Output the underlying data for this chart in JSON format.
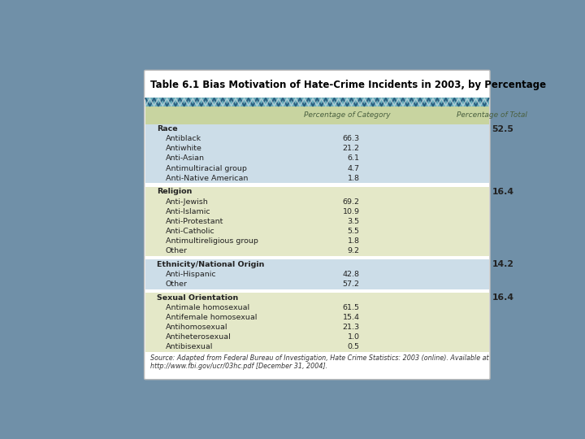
{
  "title": "Table 6.1 Bias Motivation of Hate-Crime Incidents in 2003, by Percentage",
  "col_headers": [
    "",
    "Percentage of Category",
    "Percentage of Total"
  ],
  "rows": [
    {
      "label": "Race",
      "bold": true,
      "pct_category": "",
      "pct_total": "52.5",
      "group": "race"
    },
    {
      "label": "Antiblack",
      "bold": false,
      "pct_category": "66.3",
      "pct_total": "",
      "group": "race"
    },
    {
      "label": "Antiwhite",
      "bold": false,
      "pct_category": "21.2",
      "pct_total": "",
      "group": "race"
    },
    {
      "label": "Anti-Asian",
      "bold": false,
      "pct_category": "6.1",
      "pct_total": "",
      "group": "race"
    },
    {
      "label": "Antimultiracial group",
      "bold": false,
      "pct_category": "4.7",
      "pct_total": "",
      "group": "race"
    },
    {
      "label": "Anti-Native American",
      "bold": false,
      "pct_category": "1.8",
      "pct_total": "",
      "group": "race"
    },
    {
      "label": "",
      "bold": false,
      "pct_category": "",
      "pct_total": "",
      "group": "spacer1"
    },
    {
      "label": "Religion",
      "bold": true,
      "pct_category": "",
      "pct_total": "16.4",
      "group": "religion"
    },
    {
      "label": "Anti-Jewish",
      "bold": false,
      "pct_category": "69.2",
      "pct_total": "",
      "group": "religion"
    },
    {
      "label": "Anti-Islamic",
      "bold": false,
      "pct_category": "10.9",
      "pct_total": "",
      "group": "religion"
    },
    {
      "label": "Anti-Protestant",
      "bold": false,
      "pct_category": "3.5",
      "pct_total": "",
      "group": "religion"
    },
    {
      "label": "Anti-Catholic",
      "bold": false,
      "pct_category": "5.5",
      "pct_total": "",
      "group": "religion"
    },
    {
      "label": "Antimultireligious group",
      "bold": false,
      "pct_category": "1.8",
      "pct_total": "",
      "group": "religion"
    },
    {
      "label": "Other",
      "bold": false,
      "pct_category": "9.2",
      "pct_total": "",
      "group": "religion"
    },
    {
      "label": "",
      "bold": false,
      "pct_category": "",
      "pct_total": "",
      "group": "spacer2"
    },
    {
      "label": "Ethnicity/National Origin",
      "bold": true,
      "pct_category": "",
      "pct_total": "14.2",
      "group": "ethnicity"
    },
    {
      "label": "Anti-Hispanic",
      "bold": false,
      "pct_category": "42.8",
      "pct_total": "",
      "group": "ethnicity"
    },
    {
      "label": "Other",
      "bold": false,
      "pct_category": "57.2",
      "pct_total": "",
      "group": "ethnicity"
    },
    {
      "label": "",
      "bold": false,
      "pct_category": "",
      "pct_total": "",
      "group": "spacer3"
    },
    {
      "label": "Sexual Orientation",
      "bold": true,
      "pct_category": "",
      "pct_total": "16.4",
      "group": "sexual"
    },
    {
      "label": "Antimale homosexual",
      "bold": false,
      "pct_category": "61.5",
      "pct_total": "",
      "group": "sexual"
    },
    {
      "label": "Antifemale homosexual",
      "bold": false,
      "pct_category": "15.4",
      "pct_total": "",
      "group": "sexual"
    },
    {
      "label": "Antihomosexual",
      "bold": false,
      "pct_category": "21.3",
      "pct_total": "",
      "group": "sexual"
    },
    {
      "label": "Antiheterosexual",
      "bold": false,
      "pct_category": "1.0",
      "pct_total": "",
      "group": "sexual"
    },
    {
      "label": "Antibisexual",
      "bold": false,
      "pct_category": "0.5",
      "pct_total": "",
      "group": "sexual"
    }
  ],
  "source_text": "Source: Adapted from Federal Bureau of Investigation, Hate Crime Statistics: 2003 (online). Available at\nhttp://www.fbi.gov/ucr/03hc.pdf [December 31, 2004].",
  "bg_outer": "#7090a8",
  "color_header_row": "#c8d4a0",
  "color_race": "#ccdde8",
  "color_religion": "#e4e8c8",
  "color_ethnicity": "#ccdde8",
  "color_sexual": "#e4e8c8",
  "color_spacer": "#ffffff",
  "zigzag_bg": "#6aabba",
  "zigzag_fg": "#2a5f80",
  "zigzag_light": "#c8dce0",
  "header_italic_color": "#4a6040",
  "title_color": "#000000",
  "text_color": "#222222"
}
